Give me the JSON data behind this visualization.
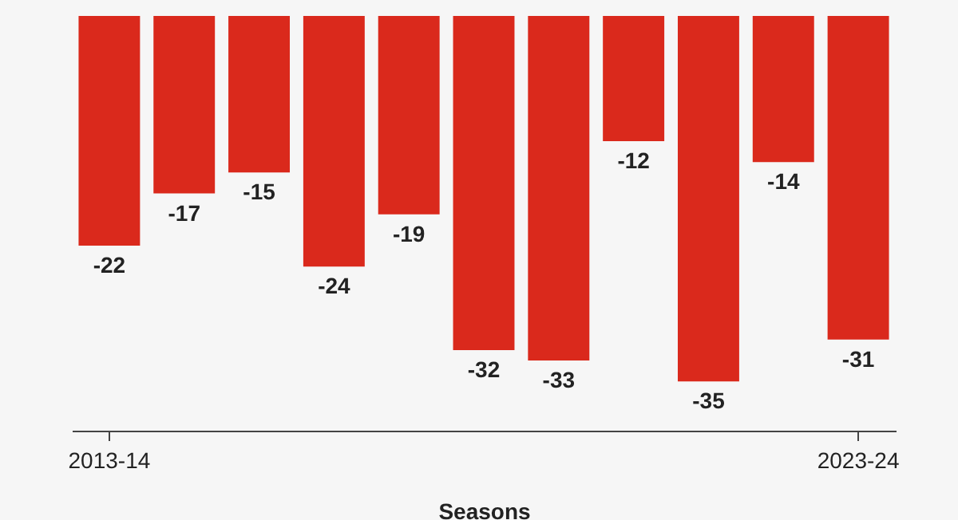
{
  "chart_data": {
    "type": "bar",
    "xlabel": "Seasons",
    "categories": [
      "2013-14",
      null,
      null,
      null,
      null,
      null,
      null,
      null,
      null,
      null,
      "2023-24"
    ],
    "values": [
      -22,
      -17,
      -15,
      -24,
      -19,
      -32,
      -33,
      -12,
      -35,
      -14,
      -31
    ],
    "color": "#da291c",
    "data_labels": true,
    "grid": false
  }
}
